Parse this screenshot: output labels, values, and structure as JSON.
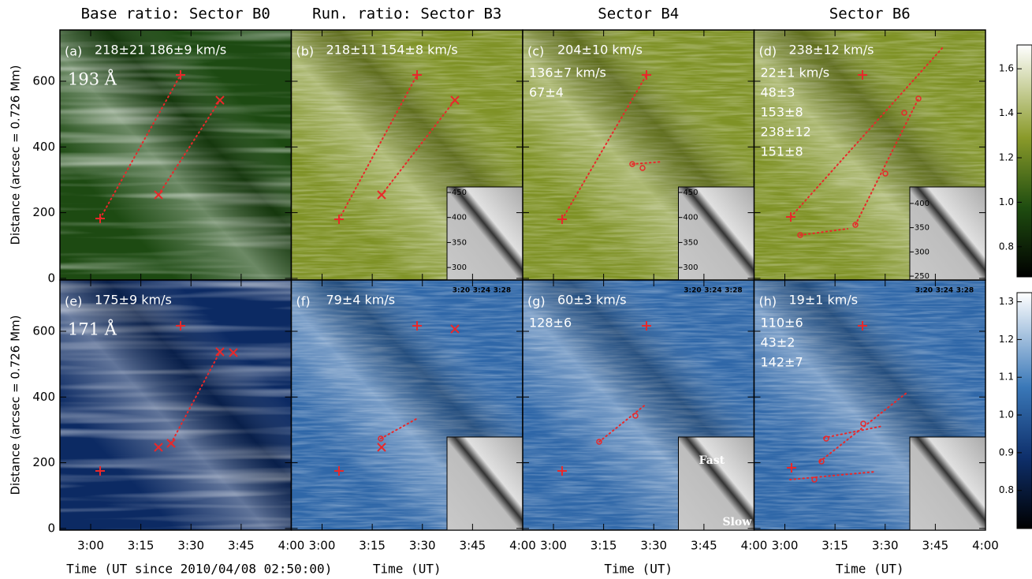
{
  "figure": {
    "columns": [
      "Base ratio: Sector B0",
      "Run. ratio: Sector B3",
      "Sector B4",
      "Sector B6"
    ],
    "y_label": "Distance (arcsec = 0.726 Mm)",
    "x_labels": [
      "Time (UT since 2010/04/08 02:50:00)",
      "Time (UT)",
      "Time (UT)",
      "Time (UT)"
    ],
    "xlim": [
      0.8,
      70
    ],
    "xticks": [
      {
        "value": 10,
        "label": "3:00"
      },
      {
        "value": 25,
        "label": "3:15"
      },
      {
        "value": 40,
        "label": "3:30"
      },
      {
        "value": 55,
        "label": "3:45"
      },
      {
        "value": 70,
        "label": "4:00"
      }
    ],
    "ylim": [
      -5,
      756
    ],
    "yticks": [
      0,
      200,
      400,
      600
    ],
    "rows": [
      {
        "wavelength": "193 Å",
        "colorbar": {
          "lim": [
            0.7,
            1.7
          ],
          "ticks": [
            0.8,
            {
              "value": 1,
              "label": "1.0"
            },
            1.2,
            1.4,
            1.6
          ]
        },
        "panels": [
          {
            "label": "(a)",
            "texts": [
              "218±21  186±9 km/s"
            ]
          },
          {
            "label": "(b)",
            "texts": [
              "218±11  154±8 km/s"
            ],
            "inset": {
              "ylim": [
                275,
                461
              ],
              "yticks": [
                450,
                400,
                350,
                300
              ]
            }
          },
          {
            "label": "(c)",
            "texts": [
              "204±10 km/s",
              "136±7 km/s",
              "67±4"
            ],
            "inset": {
              "ylim": [
                275,
                461
              ],
              "yticks": [
                450,
                400,
                350,
                300
              ]
            }
          },
          {
            "label": "(d)",
            "texts": [
              "238±12 km/s",
              "22±1 km/s",
              "48±3",
              "153±8",
              "238±12",
              "151±8"
            ],
            "inset": {
              "ylim": [
                242,
                434
              ],
              "yticks": [
                400,
                350,
                300,
                250
              ]
            }
          }
        ]
      },
      {
        "wavelength": "171 Å",
        "colorbar": {
          "lim": [
            0.72,
            1.32
          ],
          "ticks": [
            0.8,
            0.9,
            {
              "value": 1,
              "label": "1.0"
            },
            1.1,
            1.2,
            1.3
          ]
        },
        "panels": [
          {
            "label": "(e)",
            "texts": [
              "175±9 km/s"
            ]
          },
          {
            "label": "(f)",
            "texts": [
              "79±4 km/s"
            ],
            "inset": {
              "times": [
                "3:20",
                "3:24",
                "3:28"
              ]
            }
          },
          {
            "label": "(g)",
            "texts": [
              "60±3 km/s",
              "128±6"
            ],
            "inset": {
              "times": [
                "3:20",
                "3:24",
                "3:28"
              ],
              "notes": [
                "Fast",
                "Slow"
              ]
            }
          },
          {
            "label": "(h)",
            "texts": [
              "19±1 km/s",
              "110±6",
              "43±2",
              "142±7"
            ],
            "inset": {
              "times": [
                "3:20",
                "3:24",
                "3:28"
              ]
            }
          }
        ]
      }
    ]
  }
}
